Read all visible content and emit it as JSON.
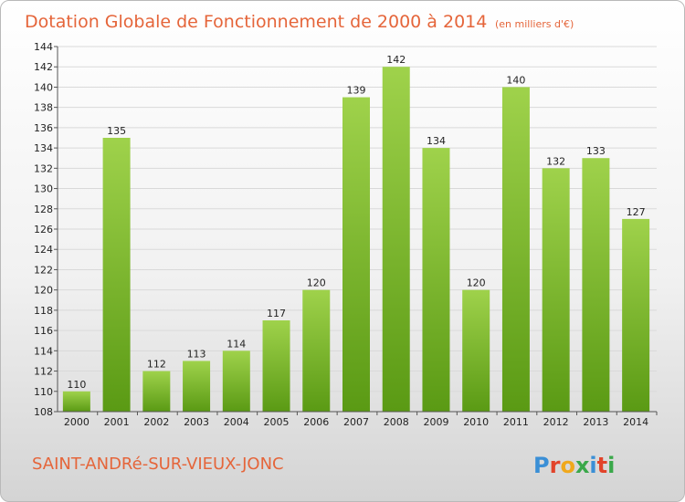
{
  "header": {
    "title": "Dotation Globale de Fonctionnement de 2000 à 2014",
    "unit": "(en milliers d'€)"
  },
  "footer": {
    "commune": "SAINT-ANDRé-SUR-VIEUX-JONC",
    "logo_text": "Proxiti",
    "logo_colors": [
      "#3a8fd6",
      "#e2432a",
      "#f0a81c",
      "#3aa84a",
      "#3a8fd6",
      "#e2432a",
      "#3aa84a"
    ]
  },
  "chart_data": {
    "type": "bar",
    "title": "Dotation Globale de Fonctionnement de 2000 à 2014",
    "subtitle": "(en milliers d'€)",
    "categories": [
      "2000",
      "2001",
      "2002",
      "2003",
      "2004",
      "2005",
      "2006",
      "2007",
      "2008",
      "2009",
      "2010",
      "2011",
      "2012",
      "2013",
      "2014"
    ],
    "values": [
      110,
      135,
      112,
      113,
      114,
      117,
      120,
      139,
      142,
      134,
      120,
      140,
      132,
      133,
      127
    ],
    "data_labels": [
      "110",
      "135",
      "112",
      "113",
      "114",
      "117",
      "120",
      "139",
      "142",
      "134",
      "120",
      "140",
      "132",
      "133",
      "127"
    ],
    "ylim": [
      108,
      144
    ],
    "y_ticks": [
      "108",
      "110",
      "112",
      "114",
      "116",
      "118",
      "120",
      "122",
      "124",
      "126",
      "128",
      "130",
      "132",
      "134",
      "136",
      "138",
      "140",
      "142",
      "144"
    ],
    "grid": true,
    "colors": {
      "bar_top": "#9fd24b",
      "bar_bottom": "#5a9a14",
      "grid": "#d9d9d9"
    }
  }
}
